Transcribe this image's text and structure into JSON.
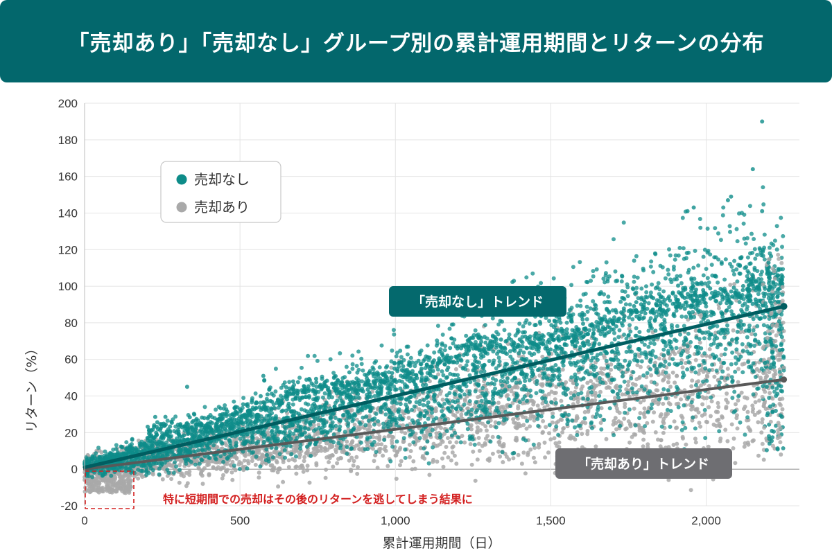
{
  "header": {
    "title": "「売却あり」「売却なし」グループ別の累計運用期間とリターンの分布"
  },
  "colors": {
    "header_bg": "#03676c",
    "no_sale": "#0e8c89",
    "sale": "#a9a9a9",
    "trend_no_sale": "#005e61",
    "trend_sale": "#595959",
    "callout_no_sale_bg": "#04696d",
    "callout_sale_bg": "#6e6e72",
    "annotation_red": "#d32020"
  },
  "chart_data": {
    "type": "scatter",
    "title": "「売却あり」「売却なし」グループ別の累計運用期間とリターンの分布",
    "xlabel": "累計運用期間（日）",
    "ylabel": "リターン（%）",
    "xlim": [
      0,
      2300
    ],
    "ylim": [
      -20,
      200
    ],
    "x_ticks": [
      0,
      500,
      1000,
      1500,
      2000
    ],
    "x_tick_labels": [
      "0",
      "500",
      "1,000",
      "1,500",
      "2,000"
    ],
    "y_ticks": [
      -20,
      0,
      20,
      40,
      60,
      80,
      100,
      120,
      140,
      160,
      180,
      200
    ],
    "y_tick_labels": [
      "-20",
      "0",
      "20",
      "40",
      "60",
      "80",
      "100",
      "120",
      "140",
      "160",
      "180",
      "200"
    ],
    "grid": true,
    "legend": {
      "position": "top-left",
      "entries": [
        {
          "label": "売却なし",
          "color": "#0e8c89"
        },
        {
          "label": "売却あり",
          "color": "#a9a9a9"
        }
      ]
    },
    "series": [
      {
        "name": "売却なし",
        "trend": {
          "x": [
            0,
            2250
          ],
          "y": [
            1,
            89
          ]
        },
        "outliers": [
          {
            "x": 2180,
            "y": 190
          },
          {
            "x": 2150,
            "y": 164
          },
          {
            "x": 2080,
            "y": 149
          },
          {
            "x": 2070,
            "y": 147
          },
          {
            "x": 2180,
            "y": 141
          },
          {
            "x": 1960,
            "y": 143
          },
          {
            "x": 1940,
            "y": 141
          },
          {
            "x": 330,
            "y": 45
          },
          {
            "x": 575,
            "y": 51
          }
        ]
      },
      {
        "name": "売却あり",
        "trend": {
          "x": [
            0,
            2250
          ],
          "y": [
            0,
            49
          ]
        }
      }
    ],
    "annotations": [
      {
        "text": "「売却なし」トレンド",
        "x": 1280,
        "y": 90
      },
      {
        "text": "「売却あり」トレンド",
        "x": 1740,
        "y": 2
      },
      {
        "text": "特に短期間での売却はその後のリターンを逃してしまう結果に",
        "x": 250,
        "y": -16
      }
    ]
  }
}
